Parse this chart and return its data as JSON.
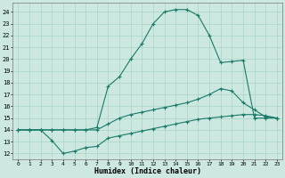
{
  "xlabel": "Humidex (Indice chaleur)",
  "x_ticks": [
    0,
    1,
    2,
    3,
    4,
    5,
    6,
    7,
    8,
    9,
    10,
    11,
    12,
    13,
    14,
    15,
    16,
    17,
    18,
    19,
    20,
    21,
    22,
    23
  ],
  "y_ticks": [
    12,
    13,
    14,
    15,
    16,
    17,
    18,
    19,
    20,
    21,
    22,
    23,
    24
  ],
  "xlim": [
    -0.5,
    23.5
  ],
  "ylim": [
    11.5,
    24.8
  ],
  "bg_color": "#cce8e0",
  "line_color": "#1a7a6a",
  "line1_x": [
    0,
    1,
    2,
    3,
    4,
    5,
    6,
    7,
    8,
    9,
    10,
    11,
    12,
    13,
    14,
    15,
    16,
    17,
    18,
    19,
    20,
    21,
    22,
    23
  ],
  "line1_y": [
    14,
    14,
    14,
    14,
    14,
    14,
    14,
    14.2,
    17.7,
    18.5,
    20.0,
    21.3,
    23.0,
    24.0,
    24.2,
    24.2,
    23.7,
    22.0,
    19.7,
    19.8,
    19.9,
    15.0,
    15.0,
    15.0
  ],
  "line2_x": [
    0,
    1,
    2,
    3,
    4,
    5,
    6,
    7,
    8,
    9,
    10,
    11,
    12,
    13,
    14,
    15,
    16,
    17,
    18,
    19,
    20,
    21,
    22,
    23
  ],
  "line2_y": [
    14,
    14,
    14,
    14,
    14,
    14,
    14,
    14,
    14.5,
    15.0,
    15.3,
    15.5,
    15.7,
    15.9,
    16.1,
    16.3,
    16.6,
    17.0,
    17.5,
    17.3,
    16.3,
    15.7,
    15.1,
    15.0
  ],
  "line3_x": [
    0,
    1,
    2,
    3,
    4,
    5,
    6,
    7,
    8,
    9,
    10,
    11,
    12,
    13,
    14,
    15,
    16,
    17,
    18,
    19,
    20,
    21,
    22,
    23
  ],
  "line3_y": [
    14,
    14,
    14,
    13.1,
    12.0,
    12.2,
    12.5,
    12.6,
    13.3,
    13.5,
    13.7,
    13.9,
    14.1,
    14.3,
    14.5,
    14.7,
    14.9,
    15.0,
    15.1,
    15.2,
    15.3,
    15.3,
    15.2,
    15.0
  ]
}
